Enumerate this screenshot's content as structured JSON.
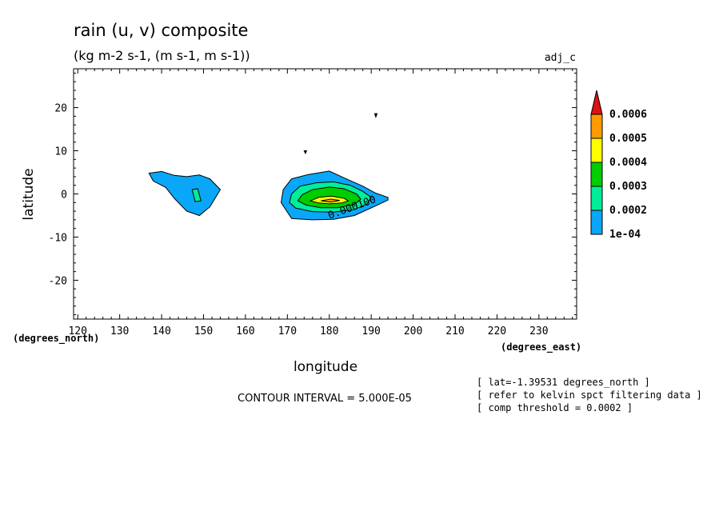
{
  "chart_data": {
    "type": "contour",
    "title": "rain (u, v) composite",
    "subtitle": "(kg m-2 s-1, (m s-1, m s-1))",
    "tag": "adj_c",
    "xlabel": "longitude",
    "ylabel": "latitude",
    "x_units": "(degrees_east)",
    "y_units": "(degrees_north)",
    "xlim": [
      119,
      239
    ],
    "ylim": [
      -29,
      29
    ],
    "x_ticks": [
      120,
      130,
      140,
      150,
      160,
      170,
      180,
      190,
      200,
      210,
      220,
      230
    ],
    "y_ticks": [
      20,
      10,
      0,
      -10,
      -20
    ],
    "contour_label": "0.000100",
    "contour_interval_text": "CONTOUR INTERVAL = 5.000E-05",
    "notes": [
      "[ lat=-1.39531 degrees_north ]",
      "[ refer to kelvin spct filtering data ]",
      "[ comp threshold = 0.0002 ]"
    ],
    "colorbar": {
      "labels": [
        "0.0006",
        "0.0005",
        "0.0004",
        "0.0003",
        "0.0002",
        "1e-04"
      ],
      "colors": [
        "#dd1111",
        "#ff9900",
        "#ffff00",
        "#00cc00",
        "#00ee99",
        "#0aa6f7"
      ]
    },
    "regions": [
      {
        "level": 0.0001,
        "color": "#0aa6f7",
        "points": [
          [
            137,
            4.8
          ],
          [
            140,
            5.2
          ],
          [
            143,
            4.3
          ],
          [
            146,
            4
          ],
          [
            149,
            4.4
          ],
          [
            151.5,
            3.5
          ],
          [
            154,
            1
          ],
          [
            151.5,
            -3
          ],
          [
            149,
            -5
          ],
          [
            146,
            -4
          ],
          [
            143,
            -1
          ],
          [
            141,
            1.5
          ],
          [
            138,
            3
          ]
        ]
      },
      {
        "level": 0.0001,
        "color": "#0aa6f7",
        "points": [
          [
            171,
            3.5
          ],
          [
            175,
            4.5
          ],
          [
            180,
            5.3
          ],
          [
            184,
            3.5
          ],
          [
            188,
            1.8
          ],
          [
            191,
            0.2
          ],
          [
            194,
            -0.8
          ],
          [
            194,
            -1.4
          ],
          [
            191,
            -2.8
          ],
          [
            186,
            -5
          ],
          [
            181,
            -5.9
          ],
          [
            176,
            -6
          ],
          [
            171,
            -5.7
          ],
          [
            168.5,
            -2
          ],
          [
            169,
            1
          ]
        ]
      },
      {
        "level": 0.00015,
        "color": "#00ee99",
        "points": [
          [
            170.5,
            -2
          ],
          [
            171,
            0
          ],
          [
            173,
            1.8
          ],
          [
            177,
            2.6
          ],
          [
            181,
            2.8
          ],
          [
            185,
            2
          ],
          [
            188,
            0.6
          ],
          [
            190,
            -0.8
          ],
          [
            189,
            -2.3
          ],
          [
            186,
            -3.6
          ],
          [
            181,
            -4.2
          ],
          [
            176,
            -4.1
          ],
          [
            172,
            -3.3
          ]
        ]
      },
      {
        "level": 0.0002,
        "color": "#00cc00",
        "points": [
          [
            172.5,
            -1.6
          ],
          [
            173.5,
            -0.2
          ],
          [
            176,
            1
          ],
          [
            180,
            1.6
          ],
          [
            183.5,
            1.2
          ],
          [
            186.5,
            0
          ],
          [
            187.5,
            -1.2
          ],
          [
            186,
            -2.4
          ],
          [
            182,
            -3.2
          ],
          [
            178,
            -3.2
          ],
          [
            174.5,
            -2.6
          ]
        ]
      },
      {
        "level": 0.0004,
        "color": "#ffff00",
        "points": [
          [
            175.5,
            -1.6
          ],
          [
            177.5,
            -0.8
          ],
          [
            180.5,
            -0.5
          ],
          [
            183.5,
            -1
          ],
          [
            184.5,
            -1.6
          ],
          [
            183,
            -2.1
          ],
          [
            180,
            -2.3
          ],
          [
            177.5,
            -2.1
          ]
        ]
      },
      {
        "level": 0.0005,
        "color": "#ff9900",
        "points": [
          [
            178,
            -1.6
          ],
          [
            180.3,
            -1.2
          ],
          [
            182.5,
            -1.5
          ],
          [
            180.3,
            -1.9
          ]
        ]
      },
      {
        "level": 0.00015,
        "color": "#00ee99",
        "points": [
          [
            147.3,
            1
          ],
          [
            148.6,
            1.2
          ],
          [
            149.4,
            -1.6
          ],
          [
            148,
            -1.8
          ]
        ]
      },
      {
        "level": 0.0001,
        "color": "#000000",
        "points": [
          [
            190.8,
            18.6
          ],
          [
            191.4,
            18.6
          ],
          [
            191.1,
            17.8
          ]
        ]
      },
      {
        "level": 0.0001,
        "color": "#000000",
        "points": [
          [
            174,
            10
          ],
          [
            174.6,
            10
          ],
          [
            174.3,
            9.4
          ]
        ]
      }
    ]
  }
}
